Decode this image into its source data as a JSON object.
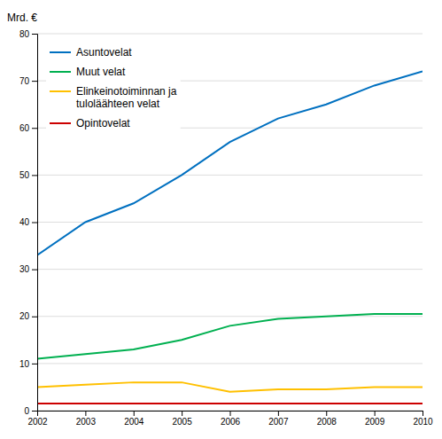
{
  "chart_data": {
    "type": "line",
    "ylabel": "Mrd. €",
    "x": [
      2002,
      2003,
      2004,
      2005,
      2006,
      2007,
      2008,
      2009,
      2010
    ],
    "series": [
      {
        "name": "Asuntovelat",
        "color": "#0070C0",
        "values": [
          33,
          40,
          44,
          50,
          57,
          62,
          65,
          69,
          72
        ]
      },
      {
        "name": "Muut velat",
        "color": "#00B050",
        "values": [
          11,
          12,
          13,
          15,
          18,
          19.5,
          20,
          20.5,
          20.5
        ]
      },
      {
        "name": "Elinkeinotoiminnan ja\ntuloläähteen velat",
        "color": "#FFC000",
        "values": [
          5,
          5.5,
          6,
          6,
          4,
          4.5,
          4.5,
          5,
          5
        ]
      },
      {
        "name": "Opintovelat",
        "color": "#CC0000",
        "values": [
          1.5,
          1.5,
          1.5,
          1.5,
          1.5,
          1.5,
          1.5,
          1.5,
          1.5
        ]
      }
    ],
    "xlim": [
      2002,
      2010
    ],
    "xticks": [
      2002,
      2003,
      2004,
      2005,
      2006,
      2007,
      2008,
      2009,
      2010
    ],
    "ylim": [
      0,
      80
    ],
    "yticks": [
      0,
      10,
      20,
      30,
      40,
      50,
      60,
      70,
      80
    ],
    "grid": "y",
    "legend": "upper left"
  }
}
